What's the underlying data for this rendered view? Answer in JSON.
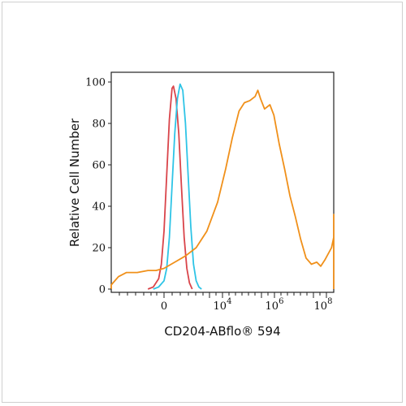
{
  "chart_data": {
    "type": "line",
    "title": "",
    "xlabel": "CD204-ABflo® 594",
    "ylabel": "Relative Cell Number",
    "x_scale": "biexponential-log",
    "ylim": [
      0,
      100
    ],
    "y_ticks": [
      "0",
      "20",
      "40",
      "60",
      "80",
      "100"
    ],
    "x_tick_labels": [
      {
        "base": "0",
        "exp": ""
      },
      {
        "base": "10",
        "exp": "4"
      },
      {
        "base": "10",
        "exp": "6"
      },
      {
        "base": "10",
        "exp": "8"
      }
    ],
    "grid": false,
    "legend": "none",
    "series": [
      {
        "color": "#d9444a",
        "points": [
          [
            -0.6,
            0
          ],
          [
            -0.4,
            1
          ],
          [
            -0.2,
            5
          ],
          [
            -0.1,
            12
          ],
          [
            0,
            28
          ],
          [
            0.1,
            55
          ],
          [
            0.2,
            82
          ],
          [
            0.3,
            97
          ],
          [
            0.35,
            98
          ],
          [
            0.45,
            92
          ],
          [
            0.55,
            75
          ],
          [
            0.65,
            50
          ],
          [
            0.75,
            25
          ],
          [
            0.85,
            10
          ],
          [
            0.95,
            3
          ],
          [
            1.05,
            0
          ]
        ]
      },
      {
        "color": "#2ec4e6",
        "points": [
          [
            -0.4,
            0
          ],
          [
            -0.2,
            1
          ],
          [
            0,
            4
          ],
          [
            0.1,
            10
          ],
          [
            0.2,
            25
          ],
          [
            0.3,
            50
          ],
          [
            0.4,
            75
          ],
          [
            0.5,
            92
          ],
          [
            0.6,
            99
          ],
          [
            0.7,
            96
          ],
          [
            0.8,
            80
          ],
          [
            0.9,
            55
          ],
          [
            1.0,
            30
          ],
          [
            1.1,
            12
          ],
          [
            1.2,
            4
          ],
          [
            1.3,
            1
          ],
          [
            1.4,
            0
          ]
        ]
      },
      {
        "color": "#f0901a",
        "points": [
          [
            -2.5,
            0
          ],
          [
            -2.1,
            2
          ],
          [
            -1.7,
            6
          ],
          [
            -1.4,
            8
          ],
          [
            -1.0,
            8
          ],
          [
            -0.6,
            9
          ],
          [
            -0.3,
            9
          ],
          [
            0,
            10
          ],
          [
            0.4,
            13
          ],
          [
            0.8,
            16
          ],
          [
            1.2,
            20
          ],
          [
            1.6,
            28
          ],
          [
            2.0,
            42
          ],
          [
            2.3,
            58
          ],
          [
            2.55,
            73
          ],
          [
            2.8,
            86
          ],
          [
            3.0,
            90
          ],
          [
            3.2,
            91
          ],
          [
            3.4,
            93
          ],
          [
            3.5,
            96
          ],
          [
            3.6,
            92
          ],
          [
            3.75,
            87
          ],
          [
            3.95,
            89
          ],
          [
            4.1,
            84
          ],
          [
            4.3,
            70
          ],
          [
            4.5,
            58
          ],
          [
            4.7,
            45
          ],
          [
            4.9,
            35
          ],
          [
            5.1,
            24
          ],
          [
            5.3,
            15
          ],
          [
            5.5,
            12
          ],
          [
            5.7,
            13
          ],
          [
            5.85,
            11
          ],
          [
            6.0,
            14
          ],
          [
            6.25,
            20
          ],
          [
            6.5,
            25
          ],
          [
            6.7,
            31
          ],
          [
            6.85,
            36
          ],
          [
            7.0,
            36
          ],
          [
            7.1,
            33
          ],
          [
            7.25,
            22
          ],
          [
            7.4,
            10
          ],
          [
            7.6,
            3
          ],
          [
            7.8,
            1
          ],
          [
            8.2,
            0
          ],
          [
            12,
            0
          ]
        ]
      }
    ]
  }
}
